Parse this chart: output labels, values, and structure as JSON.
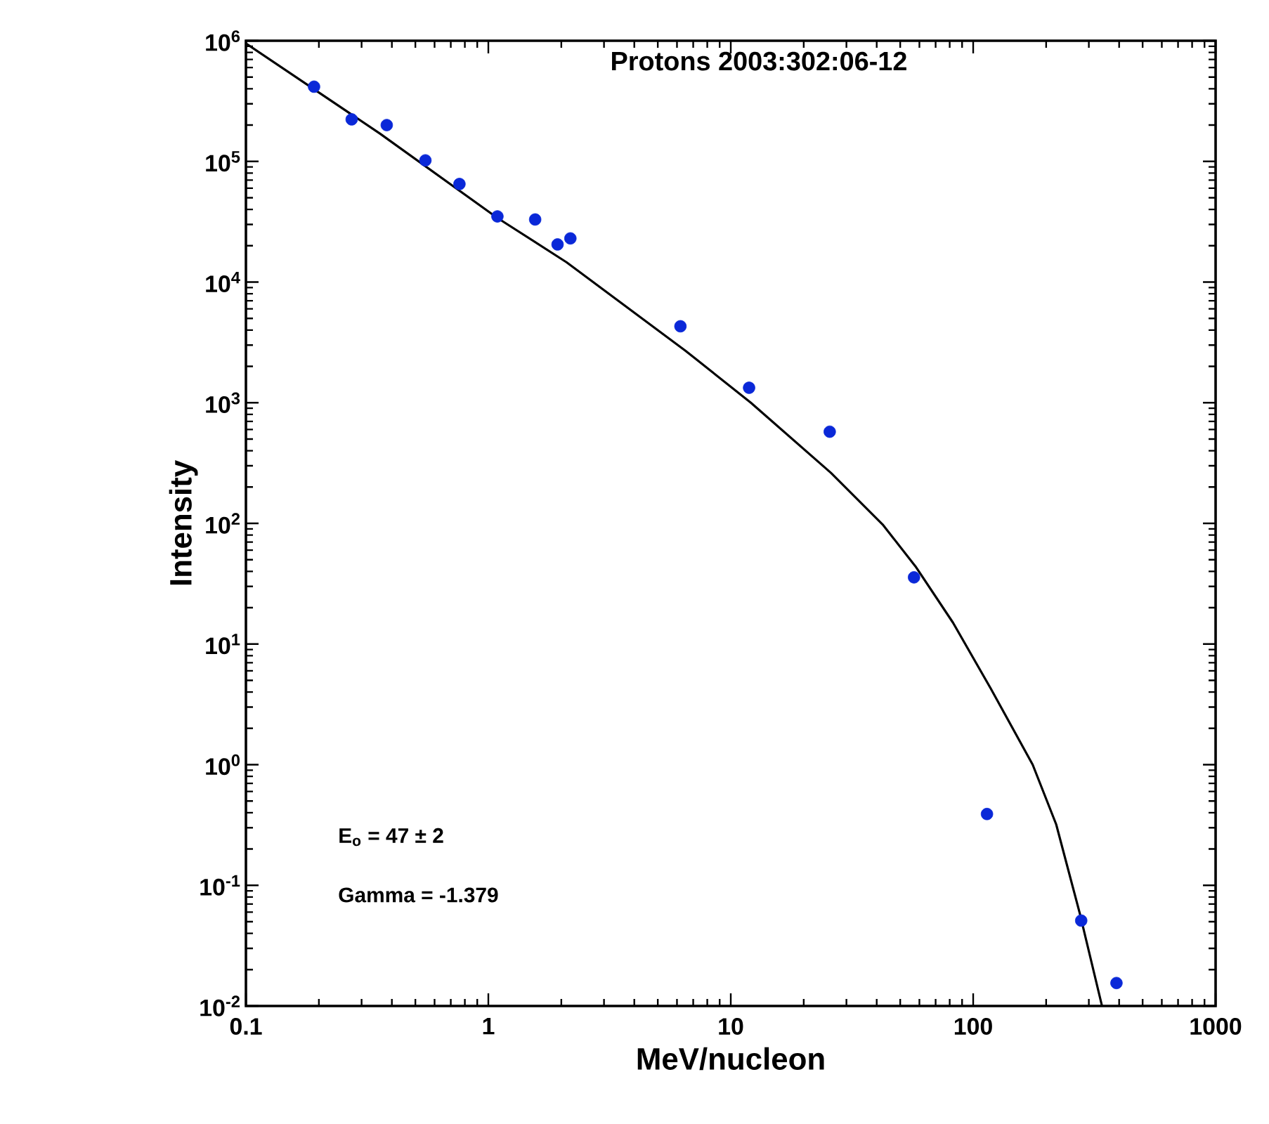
{
  "chart_data": {
    "type": "scatter",
    "title": "Protons  2003:302:06-12",
    "xlabel": "MeV/nucleon",
    "ylabel": "Intensity",
    "log": "xy",
    "marker": "circle",
    "xlim": [
      0.1,
      1000
    ],
    "xticks": [
      0.1,
      1,
      10,
      100,
      1000
    ],
    "ylim": [
      0.01,
      1000000
    ],
    "yticks": [
      {
        "value": 0.01,
        "label": "10$^{-2}$"
      },
      {
        "value": 0.1,
        "label": "10$^{-1}$"
      },
      {
        "value": 1,
        "label": "10$^{0}$"
      },
      {
        "value": 10,
        "label": "10$^{1}$"
      },
      {
        "value": 100,
        "label": "10$^{2}$"
      },
      {
        "value": 1000,
        "label": "10$^{3}$"
      },
      {
        "value": 10000,
        "label": "10$^{4}$"
      },
      {
        "value": 100000,
        "label": "10$^{5}$"
      },
      {
        "value": 1000000,
        "label": "10$^{6}$"
      }
    ],
    "annotations": [
      "E$_{o}$ = 47 ± 2",
      "Gamma = -1.379"
    ],
    "series": [
      {
        "color": "#0a28d8",
        "x": [
          0.191,
          0.273,
          0.381,
          0.55,
          0.76,
          1.09,
          1.56,
          1.93,
          2.18,
          6.2,
          11.9,
          25.6,
          57,
          114,
          279,
          390
        ],
        "values": [
          416000,
          223000,
          200000,
          102000,
          65000,
          35000,
          33000,
          20500,
          23000,
          4300,
          1330,
          575,
          35.7,
          0.39,
          0.051,
          0.0155
        ]
      },
      {
        "type": "line",
        "color": "#000000",
        "marker": "none",
        "x": [
          0.1,
          0.357,
          1.09,
          2.1,
          6.5,
          12.1,
          25.9,
          42.3,
          57.8,
          82.6,
          118,
          176,
          220,
          275,
          340
        ],
        "values": [
          950000,
          170000,
          34000,
          14600,
          2700,
          1000,
          262,
          98,
          44,
          15,
          4.3,
          1.0,
          0.32,
          0.059,
          0.01
        ]
      }
    ]
  }
}
